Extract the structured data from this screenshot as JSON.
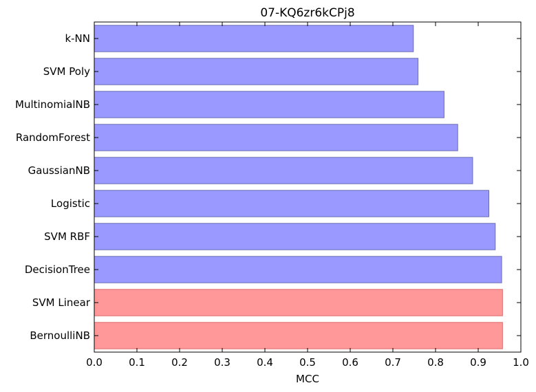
{
  "chart_data": {
    "type": "bar",
    "orientation": "horizontal",
    "title": "07-KQ6zr6kCPj8",
    "xlabel": "MCC",
    "ylabel": "",
    "xlim": [
      0.0,
      1.0
    ],
    "xticks": [
      "0.0",
      "0.1",
      "0.2",
      "0.3",
      "0.4",
      "0.5",
      "0.6",
      "0.7",
      "0.8",
      "0.9",
      "1.0"
    ],
    "grid": false,
    "categories": [
      "k-NN",
      "SVM Poly",
      "MultinomialNB",
      "RandomForest",
      "GaussianNB",
      "Logistic",
      "SVM RBF",
      "DecisionTree",
      "SVM Linear",
      "BernoulliNB"
    ],
    "values": [
      0.748,
      0.759,
      0.82,
      0.852,
      0.887,
      0.925,
      0.94,
      0.955,
      0.957,
      0.957
    ],
    "bar_colors": [
      "#9999ff",
      "#9999ff",
      "#9999ff",
      "#9999ff",
      "#9999ff",
      "#9999ff",
      "#9999ff",
      "#9999ff",
      "#ff9999",
      "#ff9999"
    ],
    "bar_edge_colors": [
      "#6b6bb3",
      "#6b6bb3",
      "#6b6bb3",
      "#6b6bb3",
      "#6b6bb3",
      "#6b6bb3",
      "#6b6bb3",
      "#6b6bb3",
      "#e06a6a",
      "#e06a6a"
    ]
  }
}
